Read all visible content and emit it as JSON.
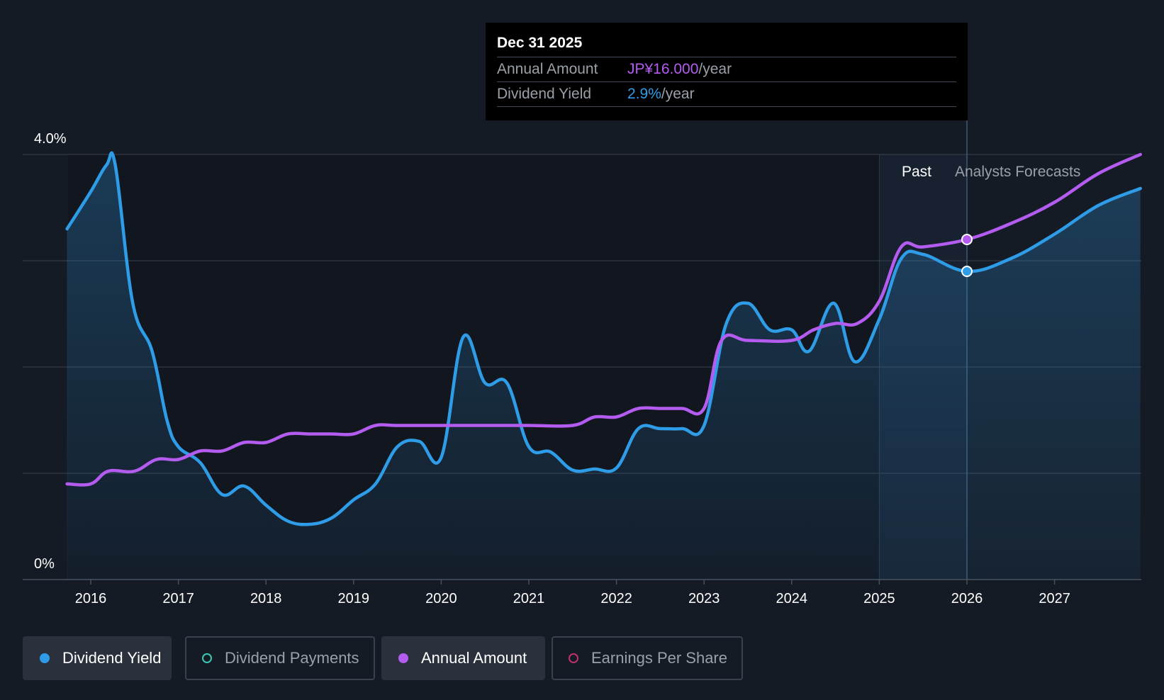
{
  "colors": {
    "background": "#151b25",
    "yield": "#2f9ce8",
    "annual": "#b45cf0",
    "payments": "#3cc9b4",
    "eps": "#c0306a",
    "grid": "#3a414c"
  },
  "tooltip": {
    "date": "Dec 31 2025",
    "annual_label": "Annual Amount",
    "annual_value": "JP¥16.000",
    "annual_unit": "/year",
    "yield_label": "Dividend Yield",
    "yield_value": "2.9%",
    "yield_unit": "/year"
  },
  "legend": {
    "items": [
      {
        "label": "Dividend Yield",
        "active": true,
        "color_key": "yield"
      },
      {
        "label": "Dividend Payments",
        "active": false,
        "color_key": "payments"
      },
      {
        "label": "Annual Amount",
        "active": true,
        "color_key": "annual"
      },
      {
        "label": "Earnings Per Share",
        "active": false,
        "color_key": "eps"
      }
    ]
  },
  "chart_data": {
    "type": "line",
    "title": "",
    "xlabel": "",
    "ylabel": "",
    "ylim": [
      0,
      4.0
    ],
    "xlim": [
      2015.7,
      2027.98
    ],
    "y_tick_labels": [
      {
        "value": 4.0,
        "label": "4.0%"
      },
      {
        "value": 0,
        "label": "0%"
      }
    ],
    "gridlines": [
      0,
      1,
      2,
      3,
      4
    ],
    "x_ticks": [
      2016,
      2017,
      2018,
      2019,
      2020,
      2021,
      2022,
      2023,
      2024,
      2025,
      2026,
      2027
    ],
    "x_tick_labels": [
      "2016",
      "2017",
      "2018",
      "2019",
      "2020",
      "2021",
      "2022",
      "2023",
      "2024",
      "2025",
      "2026",
      "2027"
    ],
    "past_label": "Past",
    "forecast_label": "Analysts Forecasts",
    "forecast_start": 2026.0,
    "series": [
      {
        "name": "Dividend Yield",
        "color_key": "yield",
        "filled": true,
        "points": [
          [
            2015.73,
            3.3
          ],
          [
            2016.0,
            3.65
          ],
          [
            2016.18,
            3.9
          ],
          [
            2016.28,
            3.9
          ],
          [
            2016.48,
            2.6
          ],
          [
            2016.7,
            2.15
          ],
          [
            2016.87,
            1.5
          ],
          [
            2017.0,
            1.25
          ],
          [
            2017.25,
            1.1
          ],
          [
            2017.5,
            0.8
          ],
          [
            2017.75,
            0.88
          ],
          [
            2018.0,
            0.7
          ],
          [
            2018.25,
            0.55
          ],
          [
            2018.5,
            0.52
          ],
          [
            2018.75,
            0.58
          ],
          [
            2019.0,
            0.75
          ],
          [
            2019.25,
            0.9
          ],
          [
            2019.5,
            1.25
          ],
          [
            2019.75,
            1.3
          ],
          [
            2020.0,
            1.15
          ],
          [
            2020.25,
            2.28
          ],
          [
            2020.5,
            1.85
          ],
          [
            2020.75,
            1.85
          ],
          [
            2021.0,
            1.25
          ],
          [
            2021.25,
            1.2
          ],
          [
            2021.5,
            1.03
          ],
          [
            2021.75,
            1.04
          ],
          [
            2022.0,
            1.05
          ],
          [
            2022.25,
            1.42
          ],
          [
            2022.5,
            1.42
          ],
          [
            2022.75,
            1.42
          ],
          [
            2023.0,
            1.45
          ],
          [
            2023.25,
            2.4
          ],
          [
            2023.5,
            2.6
          ],
          [
            2023.75,
            2.35
          ],
          [
            2024.0,
            2.35
          ],
          [
            2024.2,
            2.15
          ],
          [
            2024.48,
            2.6
          ],
          [
            2024.72,
            2.05
          ],
          [
            2025.0,
            2.45
          ],
          [
            2025.25,
            3.02
          ],
          [
            2025.5,
            3.06
          ],
          [
            2026.0,
            2.9
          ],
          [
            2026.5,
            3.02
          ],
          [
            2027.0,
            3.25
          ],
          [
            2027.5,
            3.52
          ],
          [
            2027.98,
            3.68
          ]
        ]
      },
      {
        "name": "Annual Amount",
        "color_key": "annual",
        "filled": false,
        "points": [
          [
            2015.73,
            0.9
          ],
          [
            2016.0,
            0.9
          ],
          [
            2016.2,
            1.02
          ],
          [
            2016.5,
            1.02
          ],
          [
            2016.75,
            1.13
          ],
          [
            2017.0,
            1.13
          ],
          [
            2017.25,
            1.21
          ],
          [
            2017.5,
            1.21
          ],
          [
            2017.75,
            1.29
          ],
          [
            2018.0,
            1.29
          ],
          [
            2018.25,
            1.37
          ],
          [
            2018.5,
            1.37
          ],
          [
            2018.75,
            1.37
          ],
          [
            2019.0,
            1.37
          ],
          [
            2019.25,
            1.45
          ],
          [
            2019.5,
            1.45
          ],
          [
            2020.0,
            1.45
          ],
          [
            2020.5,
            1.45
          ],
          [
            2021.0,
            1.45
          ],
          [
            2021.5,
            1.45
          ],
          [
            2021.75,
            1.53
          ],
          [
            2022.0,
            1.53
          ],
          [
            2022.25,
            1.61
          ],
          [
            2022.5,
            1.61
          ],
          [
            2022.75,
            1.61
          ],
          [
            2023.0,
            1.61
          ],
          [
            2023.2,
            2.25
          ],
          [
            2023.5,
            2.25
          ],
          [
            2024.0,
            2.25
          ],
          [
            2024.25,
            2.35
          ],
          [
            2024.5,
            2.41
          ],
          [
            2024.75,
            2.41
          ],
          [
            2025.0,
            2.62
          ],
          [
            2025.25,
            3.13
          ],
          [
            2025.5,
            3.13
          ],
          [
            2026.0,
            3.2
          ],
          [
            2026.5,
            3.35
          ],
          [
            2027.0,
            3.55
          ],
          [
            2027.5,
            3.82
          ],
          [
            2027.98,
            4.0
          ]
        ]
      }
    ],
    "markers": [
      {
        "series": "Annual Amount",
        "x": 2026.0,
        "y": 3.2
      },
      {
        "series": "Dividend Yield",
        "x": 2026.0,
        "y": 2.9
      }
    ]
  }
}
